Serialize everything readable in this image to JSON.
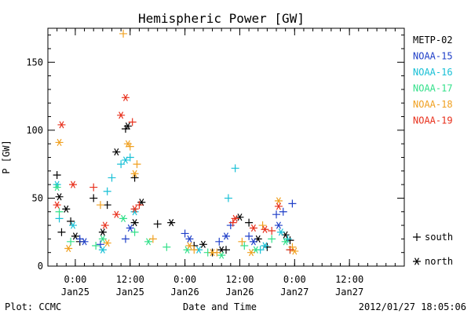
{
  "chart_data": {
    "type": "scatter",
    "title": "Hemispheric Power [GW]",
    "xlabel": "Date and Time",
    "ylabel": "P [GW]",
    "xlim": [
      "2012-01-24 18:00",
      "2012-01-28 00:00"
    ],
    "ylim": [
      0,
      175
    ],
    "grid": false,
    "legend_position": "right",
    "yticks": [
      {
        "value": 0,
        "label": "0"
      },
      {
        "value": 50,
        "label": "50"
      },
      {
        "value": 100,
        "label": "100"
      },
      {
        "value": 150,
        "label": "150"
      }
    ],
    "xticks": [
      {
        "value": "2012-01-25 00:00",
        "time": "0:00",
        "date": "Jan25"
      },
      {
        "value": "2012-01-25 12:00",
        "time": "12:00",
        "date": "Jan25"
      },
      {
        "value": "2012-01-26 00:00",
        "time": "0:00",
        "date": "Jan26"
      },
      {
        "value": "2012-01-26 12:00",
        "time": "12:00",
        "date": "Jan26"
      },
      {
        "value": "2012-01-27 00:00",
        "time": "0:00",
        "date": "Jan27"
      },
      {
        "value": "2012-01-27 12:00",
        "time": "12:00",
        "date": "Jan27"
      }
    ],
    "markers": [
      {
        "symbol": "+",
        "label": "south"
      },
      {
        "symbol": "*",
        "label": "north"
      }
    ],
    "series": [
      {
        "name": "METP-02",
        "color": "#000000",
        "south": [
          [
            "2012-01-24 20:00",
            67
          ],
          [
            "2012-01-24 21:00",
            25
          ],
          [
            "2012-01-24 23:00",
            33
          ],
          [
            "2012-01-25 01:00",
            18
          ],
          [
            "2012-01-25 04:00",
            50
          ],
          [
            "2012-01-25 07:00",
            45
          ],
          [
            "2012-01-25 11:00",
            101
          ],
          [
            "2012-01-25 13:00",
            65
          ],
          [
            "2012-01-25 18:00",
            31
          ],
          [
            "2012-01-26 02:00",
            15
          ],
          [
            "2012-01-26 06:00",
            10
          ],
          [
            "2012-01-26 09:00",
            12
          ],
          [
            "2012-01-26 14:00",
            32
          ],
          [
            "2012-01-26 18:00",
            14
          ],
          [
            "2012-01-26 23:00",
            19
          ]
        ],
        "north": [
          [
            "2012-01-24 20:30",
            51
          ],
          [
            "2012-01-24 22:00",
            42
          ],
          [
            "2012-01-25 00:00",
            22
          ],
          [
            "2012-01-25 06:00",
            25
          ],
          [
            "2012-01-25 09:00",
            84
          ],
          [
            "2012-01-25 11:30",
            103
          ],
          [
            "2012-01-25 13:00",
            32
          ],
          [
            "2012-01-25 14:30",
            47
          ],
          [
            "2012-01-25 21:00",
            32
          ],
          [
            "2012-01-26 04:00",
            16
          ],
          [
            "2012-01-26 08:00",
            12
          ],
          [
            "2012-01-26 12:00",
            36
          ],
          [
            "2012-01-26 16:00",
            20
          ],
          [
            "2012-01-26 22:00",
            23
          ]
        ]
      },
      {
        "name": "NOAA-15",
        "color": "#1f3fc8",
        "south": [
          [
            "2012-01-25 01:00",
            20
          ],
          [
            "2012-01-25 05:30",
            16
          ],
          [
            "2012-01-25 11:00",
            20
          ],
          [
            "2012-01-26 00:00",
            24
          ],
          [
            "2012-01-26 07:30",
            18
          ],
          [
            "2012-01-26 10:00",
            30
          ],
          [
            "2012-01-26 14:00",
            22
          ],
          [
            "2012-01-26 20:00",
            38
          ],
          [
            "2012-01-26 21:30",
            40
          ],
          [
            "2012-01-26 23:30",
            46
          ]
        ],
        "north": [
          [
            "2012-01-25 02:00",
            18
          ],
          [
            "2012-01-25 12:00",
            28
          ],
          [
            "2012-01-26 01:00",
            20
          ],
          [
            "2012-01-26 09:00",
            22
          ],
          [
            "2012-01-26 15:00",
            18
          ],
          [
            "2012-01-26 20:30",
            30
          ]
        ]
      },
      {
        "name": "NOAA-16",
        "color": "#18c0d6",
        "south": [
          [
            "2012-01-24 20:30",
            35
          ],
          [
            "2012-01-25 07:00",
            55
          ],
          [
            "2012-01-25 08:00",
            65
          ],
          [
            "2012-01-25 10:00",
            75
          ],
          [
            "2012-01-25 12:00",
            80
          ],
          [
            "2012-01-26 09:30",
            50
          ],
          [
            "2012-01-26 11:00",
            72
          ],
          [
            "2012-01-26 16:30",
            12
          ],
          [
            "2012-01-26 22:30",
            20
          ]
        ],
        "north": [
          [
            "2012-01-24 20:00",
            60
          ],
          [
            "2012-01-24 23:30",
            30
          ],
          [
            "2012-01-25 06:00",
            12
          ],
          [
            "2012-01-25 11:00",
            78
          ],
          [
            "2012-01-25 13:00",
            40
          ],
          [
            "2012-01-26 03:00",
            12
          ],
          [
            "2012-01-26 17:30",
            15
          ],
          [
            "2012-01-26 21:00",
            25
          ]
        ]
      },
      {
        "name": "NOAA-17",
        "color": "#33e08a",
        "south": [
          [
            "2012-01-24 20:30",
            40
          ],
          [
            "2012-01-24 23:00",
            18
          ],
          [
            "2012-01-25 04:30",
            15
          ],
          [
            "2012-01-25 13:00",
            25
          ],
          [
            "2012-01-25 20:00",
            14
          ],
          [
            "2012-01-26 05:00",
            10
          ],
          [
            "2012-01-26 13:00",
            15
          ],
          [
            "2012-01-26 19:00",
            20
          ],
          [
            "2012-01-26 23:00",
            12
          ]
        ],
        "north": [
          [
            "2012-01-24 20:00",
            58
          ],
          [
            "2012-01-25 06:00",
            20
          ],
          [
            "2012-01-25 10:30",
            35
          ],
          [
            "2012-01-25 16:00",
            18
          ],
          [
            "2012-01-26 00:30",
            12
          ],
          [
            "2012-01-26 08:00",
            8
          ],
          [
            "2012-01-26 15:30",
            12
          ],
          [
            "2012-01-26 22:00",
            18
          ]
        ]
      },
      {
        "name": "NOAA-18",
        "color": "#f0a020",
        "south": [
          [
            "2012-01-25 05:30",
            45
          ],
          [
            "2012-01-25 10:30",
            171
          ],
          [
            "2012-01-25 12:00",
            88
          ],
          [
            "2012-01-25 13:30",
            75
          ],
          [
            "2012-01-25 17:00",
            20
          ],
          [
            "2012-01-26 02:00",
            12
          ],
          [
            "2012-01-26 07:00",
            10
          ],
          [
            "2012-01-26 12:30",
            18
          ],
          [
            "2012-01-26 17:00",
            30
          ],
          [
            "2012-01-26 23:30",
            14
          ]
        ],
        "north": [
          [
            "2012-01-24 20:30",
            91
          ],
          [
            "2012-01-24 22:30",
            13
          ],
          [
            "2012-01-25 07:00",
            17
          ],
          [
            "2012-01-25 11:30",
            90
          ],
          [
            "2012-01-25 13:00",
            68
          ],
          [
            "2012-01-26 01:00",
            15
          ],
          [
            "2012-01-26 06:00",
            10
          ],
          [
            "2012-01-26 14:30",
            10
          ],
          [
            "2012-01-26 20:30",
            48
          ],
          [
            "2012-01-27 00:00",
            11
          ]
        ]
      },
      {
        "name": "NOAA-19",
        "color": "#e8301c",
        "south": [
          [
            "2012-01-25 04:00",
            58
          ],
          [
            "2012-01-25 12:30",
            106
          ],
          [
            "2012-01-25 14:00",
            45
          ],
          [
            "2012-01-26 10:30",
            32
          ],
          [
            "2012-01-26 19:00",
            26
          ],
          [
            "2012-01-26 23:00",
            12
          ]
        ],
        "north": [
          [
            "2012-01-24 20:00",
            45
          ],
          [
            "2012-01-24 21:00",
            104
          ],
          [
            "2012-01-24 23:30",
            60
          ],
          [
            "2012-01-25 06:30",
            30
          ],
          [
            "2012-01-25 09:00",
            38
          ],
          [
            "2012-01-25 10:00",
            111
          ],
          [
            "2012-01-25 11:00",
            124
          ],
          [
            "2012-01-25 13:00",
            42
          ],
          [
            "2012-01-26 11:00",
            35
          ],
          [
            "2012-01-26 15:00",
            28
          ],
          [
            "2012-01-26 17:30",
            27
          ],
          [
            "2012-01-26 20:30",
            44
          ]
        ]
      }
    ]
  },
  "footer": {
    "plot_credit": "Plot: CCMC",
    "timestamp": "2012/01/27 18:05:06"
  }
}
